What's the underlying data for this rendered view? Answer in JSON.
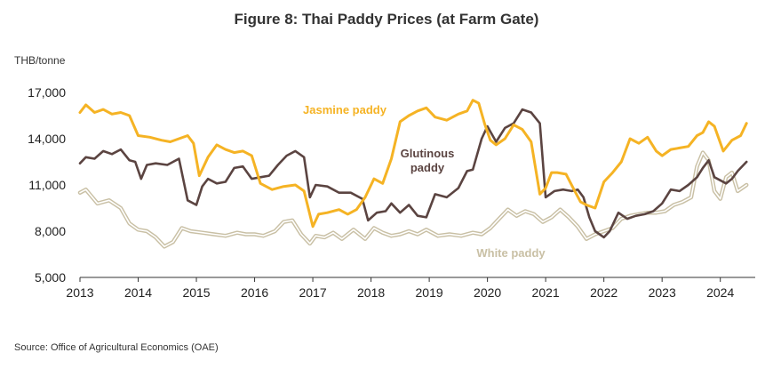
{
  "chart_data": {
    "type": "line",
    "title": "Figure 8: Thai Paddy Prices (at Farm Gate)",
    "ylabel": "THB/tonne",
    "xlabel": "",
    "ylim": [
      5000,
      17000
    ],
    "xlim": [
      2013,
      2024.6
    ],
    "yticks": [
      5000,
      8000,
      11000,
      14000,
      17000
    ],
    "ytick_labels": [
      "5,000",
      "8,000",
      "11,000",
      "14,000",
      "17,000"
    ],
    "xticks": [
      2013,
      2014,
      2015,
      2016,
      2017,
      2018,
      2019,
      2020,
      2021,
      2022,
      2023,
      2024
    ],
    "xtick_labels": [
      "2013",
      "2014",
      "2015",
      "2016",
      "2017",
      "2018",
      "2019",
      "2020",
      "2021",
      "2022",
      "2023",
      "2024"
    ],
    "grid": false,
    "source": "Source: Office of Agricultural Economics (OAE)",
    "series": [
      {
        "name": "Jasmine paddy",
        "label": "Jasmine paddy",
        "color": "#F5B324",
        "x": [
          2013.0,
          2013.1,
          2013.25,
          2013.4,
          2013.55,
          2013.7,
          2013.85,
          2014.0,
          2014.2,
          2014.4,
          2014.55,
          2014.7,
          2014.85,
          2014.95,
          2015.05,
          2015.2,
          2015.35,
          2015.5,
          2015.65,
          2015.8,
          2015.95,
          2016.1,
          2016.3,
          2016.5,
          2016.7,
          2016.85,
          2017.0,
          2017.1,
          2017.25,
          2017.45,
          2017.6,
          2017.75,
          2017.9,
          2018.05,
          2018.2,
          2018.35,
          2018.5,
          2018.65,
          2018.8,
          2018.95,
          2019.1,
          2019.3,
          2019.5,
          2019.65,
          2019.75,
          2019.85,
          2019.95,
          2020.05,
          2020.15,
          2020.3,
          2020.45,
          2020.6,
          2020.75,
          2020.9,
          2021.0,
          2021.1,
          2021.2,
          2021.35,
          2021.5,
          2021.6,
          2021.7,
          2021.85,
          2022.0,
          2022.15,
          2022.3,
          2022.45,
          2022.6,
          2022.75,
          2022.9,
          2023.0,
          2023.15,
          2023.3,
          2023.45,
          2023.6,
          2023.7,
          2023.8,
          2023.9,
          2024.05,
          2024.2,
          2024.35,
          2024.45
        ],
        "values": [
          15700,
          16200,
          15700,
          15900,
          15600,
          15700,
          15500,
          14200,
          14100,
          13900,
          13800,
          14000,
          14200,
          13700,
          11600,
          12800,
          13600,
          13300,
          13100,
          13200,
          12900,
          11100,
          10700,
          10900,
          11000,
          10600,
          8300,
          9100,
          9200,
          9400,
          9100,
          9400,
          10200,
          11400,
          11100,
          12700,
          15100,
          15500,
          15800,
          16000,
          15400,
          15200,
          15600,
          15800,
          16500,
          16300,
          15000,
          13900,
          13600,
          14000,
          14900,
          14600,
          13800,
          10400,
          10800,
          11800,
          11800,
          11700,
          10600,
          9900,
          9700,
          9500,
          11200,
          11800,
          12500,
          14000,
          13700,
          14100,
          13200,
          12900,
          13300,
          13400,
          13500,
          14200,
          14400,
          15100,
          14800,
          13200,
          13900,
          14200,
          15000
        ]
      },
      {
        "name": "Glutinous paddy",
        "label": "Glutinous\npaddy",
        "color": "#5B4441",
        "x": [
          2013.0,
          2013.1,
          2013.25,
          2013.4,
          2013.55,
          2013.7,
          2013.85,
          2013.95,
          2014.05,
          2014.15,
          2014.3,
          2014.5,
          2014.7,
          2014.85,
          2015.0,
          2015.1,
          2015.2,
          2015.35,
          2015.5,
          2015.65,
          2015.8,
          2015.95,
          2016.1,
          2016.25,
          2016.4,
          2016.55,
          2016.7,
          2016.85,
          2016.95,
          2017.05,
          2017.25,
          2017.45,
          2017.65,
          2017.85,
          2017.95,
          2018.1,
          2018.25,
          2018.35,
          2018.5,
          2018.65,
          2018.8,
          2018.95,
          2019.1,
          2019.3,
          2019.5,
          2019.65,
          2019.75,
          2019.9,
          2020.0,
          2020.15,
          2020.3,
          2020.45,
          2020.6,
          2020.75,
          2020.9,
          2021.0,
          2021.15,
          2021.3,
          2021.45,
          2021.55,
          2021.65,
          2021.75,
          2021.85,
          2022.0,
          2022.1,
          2022.25,
          2022.4,
          2022.55,
          2022.7,
          2022.85,
          2023.0,
          2023.15,
          2023.3,
          2023.45,
          2023.6,
          2023.7,
          2023.8,
          2023.9,
          2024.0,
          2024.1,
          2024.2,
          2024.3,
          2024.45
        ],
        "values": [
          12400,
          12800,
          12700,
          13200,
          13000,
          13300,
          12600,
          12500,
          11400,
          12300,
          12400,
          12300,
          12700,
          10000,
          9700,
          10900,
          11400,
          11100,
          11200,
          12100,
          12200,
          11400,
          11500,
          11600,
          12300,
          12900,
          13200,
          12800,
          10200,
          11000,
          10900,
          10500,
          10500,
          10100,
          8700,
          9200,
          9300,
          9800,
          9200,
          9700,
          9000,
          8900,
          10400,
          10200,
          10800,
          11900,
          12000,
          14000,
          14800,
          13800,
          14700,
          15000,
          15900,
          15700,
          15000,
          10200,
          10600,
          10700,
          10600,
          10700,
          10200,
          8900,
          8000,
          7600,
          8000,
          9200,
          8800,
          9000,
          9100,
          9300,
          9800,
          10700,
          10600,
          11000,
          11500,
          12100,
          12600,
          11500,
          11300,
          11100,
          11400,
          11900,
          12500
        ]
      },
      {
        "name": "White paddy",
        "label": "White paddy",
        "color": "#C9C0A5",
        "x": [
          2013.0,
          2013.1,
          2013.3,
          2013.5,
          2013.7,
          2013.85,
          2014.0,
          2014.15,
          2014.3,
          2014.45,
          2014.6,
          2014.75,
          2014.9,
          2015.1,
          2015.3,
          2015.5,
          2015.7,
          2015.85,
          2016.0,
          2016.15,
          2016.35,
          2016.5,
          2016.65,
          2016.8,
          2016.95,
          2017.05,
          2017.2,
          2017.35,
          2017.5,
          2017.7,
          2017.9,
          2018.05,
          2018.2,
          2018.35,
          2018.5,
          2018.65,
          2018.8,
          2018.95,
          2019.15,
          2019.35,
          2019.55,
          2019.75,
          2019.9,
          2020.05,
          2020.2,
          2020.35,
          2020.5,
          2020.65,
          2020.8,
          2020.95,
          2021.1,
          2021.25,
          2021.4,
          2021.55,
          2021.7,
          2021.85,
          2022.0,
          2022.15,
          2022.3,
          2022.45,
          2022.6,
          2022.75,
          2022.9,
          2023.05,
          2023.2,
          2023.35,
          2023.5,
          2023.6,
          2023.7,
          2023.8,
          2023.9,
          2024.0,
          2024.1,
          2024.2,
          2024.3,
          2024.45
        ],
        "values": [
          10500,
          10700,
          9800,
          10000,
          9500,
          8500,
          8100,
          8000,
          7600,
          7000,
          7300,
          8200,
          8000,
          7900,
          7800,
          7700,
          7900,
          7800,
          7800,
          7700,
          8000,
          8600,
          8700,
          7800,
          7200,
          7700,
          7600,
          7900,
          7500,
          8100,
          7500,
          8200,
          7900,
          7700,
          7800,
          8000,
          7800,
          8100,
          7700,
          7800,
          7700,
          7900,
          7800,
          8200,
          8800,
          9400,
          9000,
          9300,
          9100,
          8600,
          8900,
          9400,
          8900,
          8300,
          7500,
          7800,
          8000,
          8200,
          8800,
          9000,
          9100,
          9200,
          9200,
          9300,
          9700,
          9900,
          10200,
          12200,
          13100,
          12600,
          10600,
          10100,
          11500,
          11800,
          10600,
          11000
        ]
      }
    ]
  }
}
